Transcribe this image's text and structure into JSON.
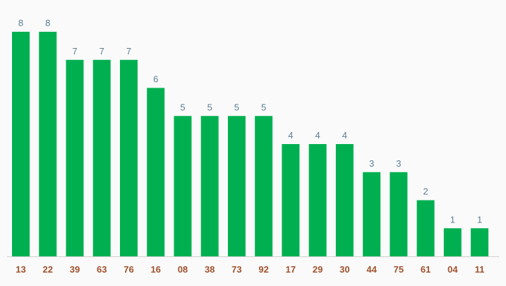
{
  "chart_data": {
    "type": "bar",
    "categories": [
      "13",
      "22",
      "39",
      "63",
      "76",
      "16",
      "08",
      "38",
      "73",
      "92",
      "17",
      "29",
      "30",
      "44",
      "75",
      "61",
      "04",
      "11"
    ],
    "values": [
      8,
      8,
      7,
      7,
      7,
      6,
      5,
      5,
      5,
      5,
      4,
      4,
      4,
      3,
      3,
      2,
      1,
      1
    ],
    "color": "#00b050"
  }
}
